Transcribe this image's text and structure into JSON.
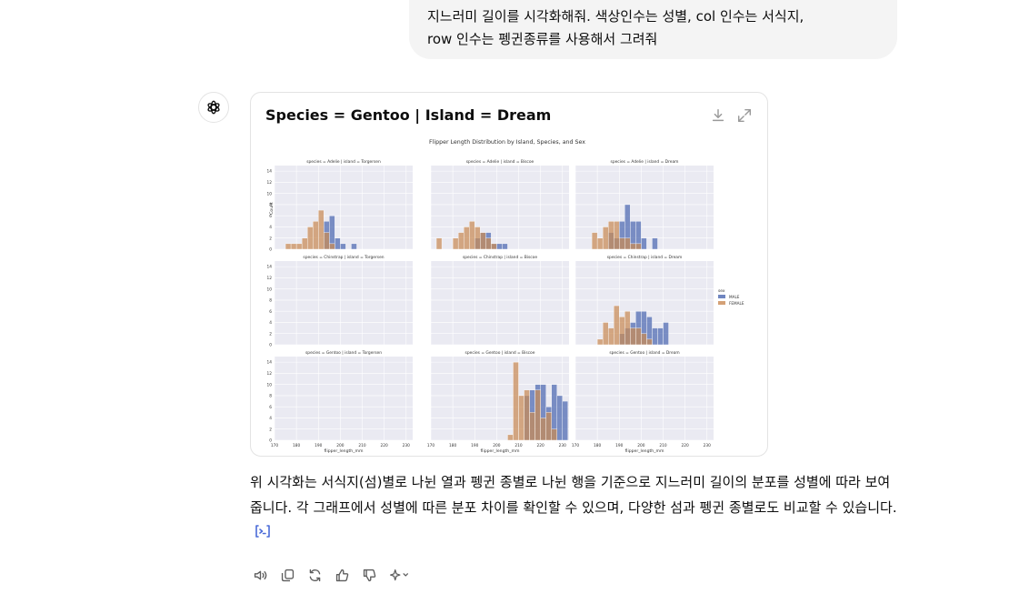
{
  "user_message": "지느러미 길이를 시각화해줘. 색상인수는 성별, col 인수는 서식지,\nrow 인수는 펭귄종류를 사용해서 그려줘",
  "card": {
    "title": "Species = Gentoo | Island = Dream"
  },
  "chart_data": {
    "type": "histogram-grid",
    "title": "Flipper Length Distribution by Island, Species, and Sex",
    "xlabel": "flipper_length_mm",
    "ylabel": "Count",
    "x_ticks": [
      "170",
      "180",
      "190",
      "200",
      "210",
      "220",
      "230"
    ],
    "y_ticks": [
      "0",
      "2",
      "4",
      "6",
      "8",
      "10",
      "12",
      "14"
    ],
    "xlim": [
      170,
      233
    ],
    "ylim": [
      0,
      15
    ],
    "bin_width": 2.5,
    "legend": {
      "title": "sex",
      "placement": "right",
      "entries": [
        {
          "name": "MALE",
          "color": "#4c68b0"
        },
        {
          "name": "FEMALE",
          "color": "#c98a54"
        }
      ]
    },
    "panels": [
      {
        "title": "species = Adelie | island = Torgersen",
        "male": [
          [
            192.5,
            5
          ],
          [
            195,
            6
          ],
          [
            197.5,
            2
          ],
          [
            200,
            1
          ],
          [
            205,
            1
          ]
        ],
        "female": [
          [
            175,
            1
          ],
          [
            177.5,
            1
          ],
          [
            180,
            1
          ],
          [
            182.5,
            2
          ],
          [
            185,
            4
          ],
          [
            187.5,
            5
          ],
          [
            190,
            7
          ],
          [
            192.5,
            3
          ],
          [
            195,
            1
          ]
        ]
      },
      {
        "title": "species = Adelie | island = Biscoe",
        "male": [
          [
            190,
            2
          ],
          [
            192.5,
            3
          ],
          [
            195,
            3
          ],
          [
            197.5,
            1
          ],
          [
            200,
            1
          ],
          [
            202.5,
            1
          ]
        ],
        "female": [
          [
            172.5,
            2
          ],
          [
            180,
            2
          ],
          [
            182.5,
            3
          ],
          [
            185,
            4
          ],
          [
            187.5,
            5
          ],
          [
            190,
            4
          ],
          [
            192.5,
            3
          ],
          [
            195,
            2
          ],
          [
            197.5,
            1
          ]
        ]
      },
      {
        "title": "species = Adelie | island = Dream",
        "male": [
          [
            185,
            3
          ],
          [
            187.5,
            2
          ],
          [
            190,
            5
          ],
          [
            192.5,
            8
          ],
          [
            195,
            5
          ],
          [
            197.5,
            5
          ],
          [
            200,
            2
          ],
          [
            205,
            2
          ]
        ],
        "female": [
          [
            177.5,
            3
          ],
          [
            180,
            2
          ],
          [
            182.5,
            4
          ],
          [
            185,
            5
          ],
          [
            187.5,
            5
          ],
          [
            190,
            2
          ],
          [
            192.5,
            2
          ],
          [
            195,
            1
          ],
          [
            197.5,
            1
          ]
        ]
      },
      {
        "title": "species = Chinstrap | island = Torgersen",
        "male": [],
        "female": []
      },
      {
        "title": "species = Chinstrap | island = Biscoe",
        "male": [],
        "female": []
      },
      {
        "title": "species = Chinstrap | island = Dream",
        "male": [
          [
            190,
            2
          ],
          [
            192.5,
            3
          ],
          [
            195,
            4
          ],
          [
            197.5,
            6
          ],
          [
            200,
            6
          ],
          [
            202.5,
            5
          ],
          [
            205,
            3
          ],
          [
            207.5,
            3
          ],
          [
            210,
            4
          ]
        ],
        "female": [
          [
            180,
            1
          ],
          [
            182.5,
            4
          ],
          [
            185,
            3
          ],
          [
            187.5,
            7
          ],
          [
            190,
            5
          ],
          [
            192.5,
            6
          ],
          [
            195,
            3
          ],
          [
            197.5,
            3
          ],
          [
            200,
            2
          ],
          [
            202.5,
            1
          ]
        ]
      },
      {
        "title": "species = Gentoo | island = Torgersen",
        "male": [],
        "female": []
      },
      {
        "title": "species = Gentoo | island = Biscoe",
        "male": [
          [
            212.5,
            8
          ],
          [
            215,
            9
          ],
          [
            217.5,
            10
          ],
          [
            220,
            10
          ],
          [
            222.5,
            6
          ],
          [
            225,
            10
          ],
          [
            227.5,
            8
          ],
          [
            230,
            7
          ]
        ],
        "female": [
          [
            205,
            1
          ],
          [
            207.5,
            14
          ],
          [
            210,
            8
          ],
          [
            212.5,
            9
          ],
          [
            215,
            5
          ],
          [
            217.5,
            9
          ],
          [
            220,
            4
          ],
          [
            222.5,
            5
          ],
          [
            225,
            2
          ]
        ]
      },
      {
        "title": "species = Gentoo | island = Dream",
        "male": [],
        "female": []
      }
    ]
  },
  "answer": {
    "text": "위 시각화는 서식지(섬)별로 나뉜 열과 펭귄 종별로 나뉜 행을 기준으로 지느러미 길이의 분포를 성별에 따라 보여줍니다. 각 그래프에서 성별에 따른 분포 차이를 확인할 수 있으며, 다양한 섬과 펭귄 종별로도 비교할 수 있습니다."
  },
  "icons": {
    "assistant": "openai-logo-icon",
    "card_download": "download-icon",
    "card_expand": "expand-icon",
    "citation": "code-citation-icon",
    "actions": [
      "read-aloud-icon",
      "copy-icon",
      "regenerate-icon",
      "thumbs-up-icon",
      "thumbs-down-icon",
      "model-switch-icon"
    ]
  }
}
